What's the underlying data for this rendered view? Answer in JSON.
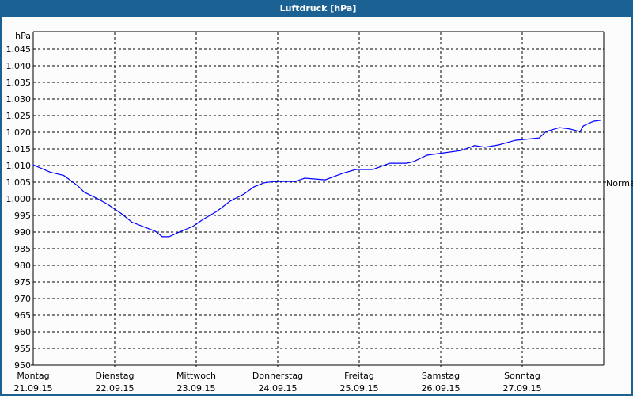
{
  "window": {
    "title": "Luftdruck [hPa]"
  },
  "chart_data": {
    "type": "line",
    "title": "Luftdruck [hPa]",
    "ylabel": "hPa",
    "ylim": [
      950,
      1050
    ],
    "ytick_step": 5,
    "ytick_labels": [
      "950",
      "955",
      "960",
      "965",
      "970",
      "975",
      "980",
      "985",
      "990",
      "995",
      "1.000",
      "1.005",
      "1.010",
      "1.015",
      "1.020",
      "1.025",
      "1.030",
      "1.035",
      "1.040",
      "1.045"
    ],
    "xlim": [
      "21.09.15 00:00",
      "28.09.15 00:00"
    ],
    "xtick_labels": [
      {
        "day": "Montag",
        "date": "21.09.15"
      },
      {
        "day": "Dienstag",
        "date": "22.09.15"
      },
      {
        "day": "Mittwoch",
        "date": "23.09.15"
      },
      {
        "day": "Donnerstag",
        "date": "24.09.15"
      },
      {
        "day": "Freitag",
        "date": "25.09.15"
      },
      {
        "day": "Samstag",
        "date": "26.09.15"
      },
      {
        "day": "Sonntag",
        "date": "27.09.15"
      }
    ],
    "reference_line": {
      "label": "Normal",
      "value": 1005
    },
    "grid": true,
    "line_color": "#0000ff",
    "series": [
      {
        "x": [
          "21.09.15 00:00",
          "21.09.15 05:00",
          "21.09.15 09:00",
          "21.09.15 13:00",
          "21.09.15 15:00",
          "21.09.15 19:00",
          "21.09.15 22:00",
          "22.09.15 02:00",
          "22.09.15 05:00",
          "22.09.15 09:00",
          "22.09.15 12:00",
          "22.09.15 14:00",
          "22.09.15 16:00",
          "22.09.15 19:00",
          "22.09.15 23:00",
          "23.09.15 02:00",
          "23.09.15 06:00",
          "23.09.15 10:00",
          "23.09.15 14:00",
          "23.09.15 17:00",
          "23.09.15 20:00",
          "23.09.15 23:00",
          "24.09.15 05:00",
          "24.09.15 08:00",
          "24.09.15 14:00",
          "24.09.15 19:00",
          "24.09.15 23:00",
          "25.09.15 04:00",
          "25.09.15 09:00",
          "25.09.15 14:00",
          "25.09.15 16:00",
          "25.09.15 20:00",
          "26.09.15 01:00",
          "26.09.15 06:00",
          "26.09.15 10:00",
          "26.09.15 13:00",
          "26.09.15 17:00",
          "26.09.15 22:00",
          "27.09.15 03:00",
          "27.09.15 05:00",
          "27.09.15 07:00",
          "27.09.15 11:00",
          "27.09.15 14:00",
          "27.09.15 17:00",
          "27.09.15 18:00",
          "27.09.15 21:00",
          "27.09.15 23:00"
        ],
        "y": [
          1010.2,
          1008,
          1007,
          1004,
          1002,
          1000,
          998.3,
          995.5,
          993,
          991.4,
          990.2,
          988.6,
          988.6,
          990,
          991.7,
          993.8,
          996.2,
          999.3,
          1001.4,
          1003.6,
          1004.8,
          1005.2,
          1005.2,
          1006.2,
          1005.7,
          1007.6,
          1008.8,
          1008.8,
          1010.7,
          1010.7,
          1011.2,
          1013.1,
          1013.8,
          1014.5,
          1016,
          1015.5,
          1016.2,
          1017.6,
          1018.1,
          1018.3,
          1020.2,
          1021.4,
          1021,
          1020.2,
          1021.9,
          1023.3,
          1023.6
        ]
      }
    ]
  }
}
